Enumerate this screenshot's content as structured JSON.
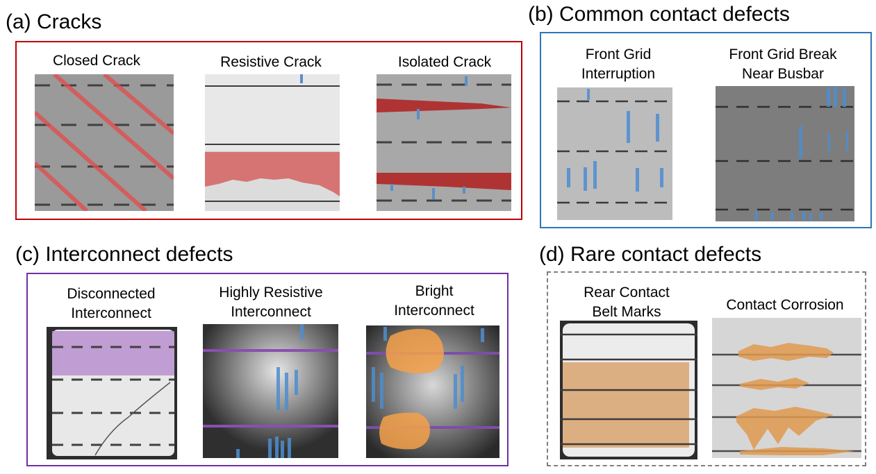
{
  "colors": {
    "cracks_frame": "#c00000",
    "common_frame": "#2e75b6",
    "interconnect_frame": "#7030a0",
    "rare_frame": "#7f7f7f",
    "crack_overlay": "#c0392b",
    "contact_overlay": "#3a7ebf",
    "interconnect_overlay": "#9b59b6",
    "bright_overlay": "#f39c3c"
  },
  "sections": {
    "cracks": {
      "title": "(a) Cracks",
      "items": [
        {
          "label": [
            "Closed Crack"
          ]
        },
        {
          "label": [
            "Resistive Crack"
          ]
        },
        {
          "label": [
            "Isolated Crack"
          ]
        }
      ]
    },
    "common": {
      "title": "(b) Common contact defects",
      "items": [
        {
          "label": [
            "Front Grid",
            "Interruption"
          ]
        },
        {
          "label": [
            "Front Grid Break",
            "Near Busbar"
          ]
        }
      ]
    },
    "interconnect": {
      "title": "(c) Interconnect defects",
      "items": [
        {
          "label": [
            "Disconnected",
            "Interconnect"
          ]
        },
        {
          "label": [
            "Highly Resistive",
            "Interconnect"
          ]
        },
        {
          "label": [
            "Bright",
            "Interconnect"
          ]
        }
      ]
    },
    "rare": {
      "title": "(d) Rare contact defects",
      "items": [
        {
          "label": [
            "Rear Contact",
            "Belt Marks"
          ]
        },
        {
          "label": [
            "Contact Corrosion"
          ]
        }
      ]
    }
  }
}
